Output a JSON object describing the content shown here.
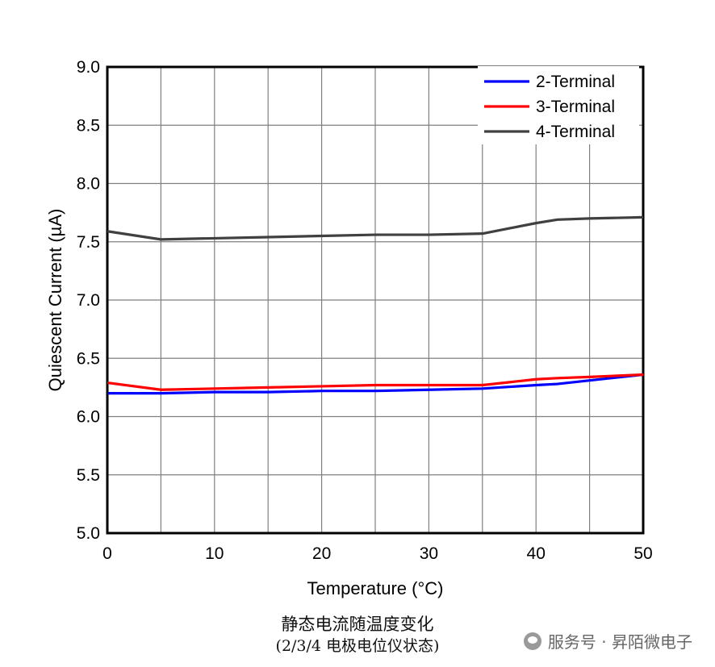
{
  "chart_data": {
    "type": "line",
    "title": "",
    "xlabel": "Temperature (°C)",
    "ylabel": "Quiescent Current (µA)",
    "xlim": [
      0,
      50
    ],
    "ylim": [
      5.0,
      9.0
    ],
    "x_ticks": [
      "0",
      "10",
      "20",
      "30",
      "40",
      "50"
    ],
    "y_ticks": [
      "5.0",
      "5.5",
      "6.0",
      "6.5",
      "7.0",
      "7.5",
      "8.0",
      "8.5",
      "9.0"
    ],
    "grid": true,
    "legend_position": "top-right",
    "series": [
      {
        "name": "2-Terminal",
        "color": "#0000ff",
        "x": [
          0,
          5,
          10,
          15,
          20,
          25,
          30,
          35,
          40,
          42,
          45,
          50
        ],
        "y": [
          6.2,
          6.2,
          6.21,
          6.21,
          6.22,
          6.22,
          6.23,
          6.24,
          6.27,
          6.28,
          6.31,
          6.36
        ]
      },
      {
        "name": "3-Terminal",
        "color": "#ff0000",
        "x": [
          0,
          5,
          10,
          15,
          20,
          25,
          30,
          35,
          40,
          42,
          45,
          50
        ],
        "y": [
          6.29,
          6.23,
          6.24,
          6.25,
          6.26,
          6.27,
          6.27,
          6.27,
          6.32,
          6.33,
          6.34,
          6.36
        ]
      },
      {
        "name": "4-Terminal",
        "color": "#404040",
        "x": [
          0,
          5,
          10,
          15,
          20,
          25,
          30,
          35,
          40,
          42,
          45,
          50
        ],
        "y": [
          7.59,
          7.52,
          7.53,
          7.54,
          7.55,
          7.56,
          7.56,
          7.57,
          7.66,
          7.69,
          7.7,
          7.71
        ]
      }
    ]
  },
  "caption": {
    "line1": "静态电流随温度变化",
    "line2": "(2/3/4 电极电位仪状态)"
  },
  "watermark": {
    "text": "服务号 · 昇陌微电子",
    "icon": "wechat-icon"
  }
}
